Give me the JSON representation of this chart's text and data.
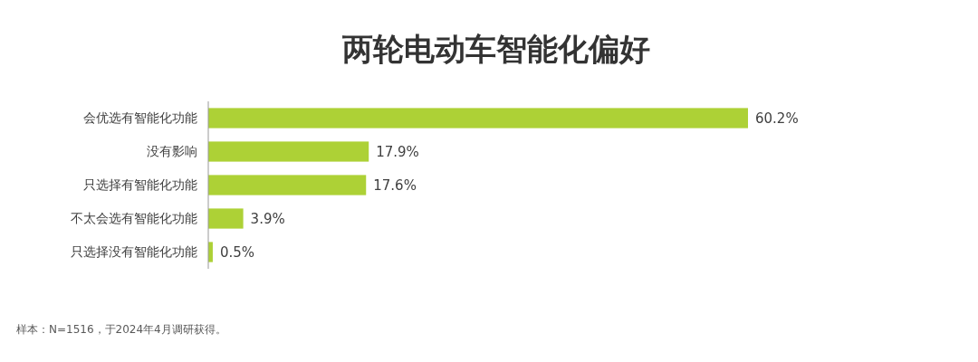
{
  "chart_data": {
    "type": "bar",
    "orientation": "horizontal",
    "title": "两轮电动车智能化偏好",
    "categories": [
      "会优选有智能化功能",
      "没有影响",
      "只选择有智能化功能",
      "不太会选有智能化功能",
      "只选择没有智能化功能"
    ],
    "values": [
      60.2,
      17.9,
      17.6,
      3.9,
      0.5
    ],
    "value_labels": [
      "60.2%",
      "17.9%",
      "17.6%",
      "3.9%",
      "0.5%"
    ],
    "color": "#add136",
    "annotations": [
      "样本：N=1516，于2024年4月调研获得。"
    ]
  }
}
